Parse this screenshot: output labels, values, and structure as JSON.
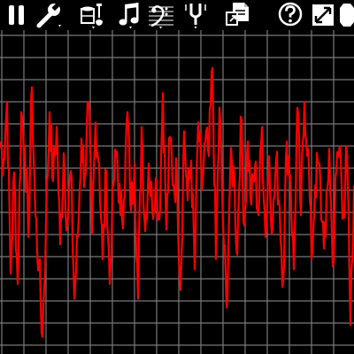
{
  "app": {
    "accent_color": "#ff0000",
    "grid_color": "#7a7a7a",
    "background": "#000000"
  },
  "toolbar": {
    "buttons": [
      {
        "name": "pause-button",
        "icon": "pause-icon",
        "has_dropdown": false
      },
      {
        "name": "settings-button",
        "icon": "wrench-icon",
        "has_dropdown": true
      },
      {
        "name": "instrument-button",
        "icon": "instruments-icon",
        "has_dropdown": true
      },
      {
        "name": "note-button",
        "icon": "music-note-icon",
        "has_dropdown": true
      },
      {
        "name": "clef-button",
        "icon": "bass-clef-icon",
        "has_dropdown": true
      },
      {
        "name": "tuning-fork-button",
        "icon": "tuning-fork-icon",
        "has_dropdown": true
      },
      {
        "name": "export-button",
        "icon": "document-export-icon",
        "has_dropdown": false
      },
      {
        "name": "help-button",
        "icon": "help-icon",
        "has_dropdown": false
      },
      {
        "name": "fullscreen-button",
        "icon": "expand-icon",
        "has_dropdown": false
      },
      {
        "name": "stop-button",
        "icon": "stop-octagon-icon",
        "has_dropdown": false
      }
    ]
  },
  "chart_data": {
    "type": "line",
    "title": "",
    "xlabel": "",
    "ylabel": "",
    "grid": true,
    "xlim": [
      0,
      400
    ],
    "ylim": [
      -1,
      1
    ],
    "series": [
      {
        "color": "#ff0000",
        "x": [
          0,
          4,
          8,
          12,
          16,
          20,
          24,
          28,
          32,
          36,
          40,
          44,
          48,
          52,
          56,
          60,
          64,
          68,
          72,
          76,
          80,
          84,
          88,
          92,
          96,
          100,
          104,
          108,
          112,
          116,
          120,
          124,
          128,
          132,
          136,
          140,
          144,
          148,
          152,
          156,
          160,
          164,
          168,
          172,
          176,
          180,
          184,
          188,
          192,
          196,
          200,
          204,
          208,
          212,
          216,
          220,
          224,
          228,
          232,
          236,
          240,
          244,
          248,
          252,
          256,
          260,
          264,
          268,
          272,
          276,
          280,
          284,
          288,
          292,
          296,
          300,
          304,
          308,
          312,
          316,
          320,
          324,
          328,
          332,
          336,
          340,
          344,
          348,
          352,
          356,
          360,
          364,
          368,
          372,
          376,
          380,
          384,
          388,
          392,
          396,
          400
        ],
        "y": [
          0.35,
          0.22,
          0.62,
          -0.55,
          0.14,
          -0.62,
          0.55,
          0.32,
          -0.3,
          0.72,
          -0.15,
          -0.5,
          -0.98,
          -0.2,
          0.55,
          0.08,
          0.45,
          -0.35,
          0.27,
          -0.22,
          0.15,
          -0.72,
          -0.3,
          0.37,
          0.1,
          0.62,
          -0.28,
          0.48,
          0.2,
          -0.45,
          0.15,
          -0.62,
          0.05,
          0.28,
          -0.15,
          -0.05,
          0.55,
          -0.12,
          0.2,
          -0.72,
          0.45,
          -0.26,
          0.2,
          -0.1,
          0.1,
          -0.18,
          0.68,
          -0.25,
          0.38,
          0.05,
          0.12,
          -0.66,
          0.42,
          -0.05,
          0.22,
          -0.52,
          0.48,
          0.02,
          0.35,
          0.25,
          0.85,
          -0.45,
          0.58,
          -0.2,
          -0.78,
          0.12,
          0.18,
          -0.42,
          0.52,
          -0.22,
          0.35,
          -0.08,
          0.18,
          -0.15,
          0.45,
          -0.3,
          0.25,
          -0.25,
          0.22,
          -0.1,
          -0.6,
          0.35,
          0.12,
          -0.52,
          0.58,
          -0.15,
          0.62,
          0.3,
          -0.45,
          0.05,
          0.2,
          -0.2,
          -0.3,
          0.3,
          -0.5,
          0.15,
          0.32,
          -0.15,
          0.28,
          -0.9,
          0.05
        ]
      }
    ]
  }
}
